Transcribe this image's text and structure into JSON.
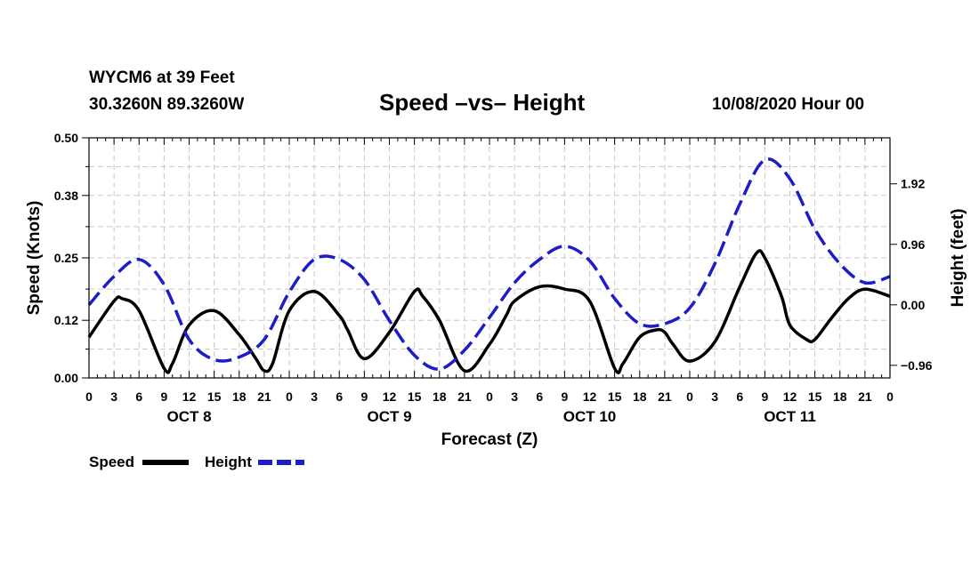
{
  "header": {
    "station": "WYCM6 at 39 Feet",
    "coords": "30.3260N 89.3260W",
    "title": "Speed –vs– Height",
    "issued": "10/08/2020 Hour 00"
  },
  "chart_data": {
    "type": "line",
    "title": "Speed –vs– Height",
    "xlabel": "Forecast (Z)",
    "ylabel_left": "Speed (Knots)",
    "ylabel_right": "Height (feet)",
    "x_range_hours": [
      0,
      96
    ],
    "x_tick_labels": [
      "0",
      "3",
      "6",
      "9",
      "12",
      "15",
      "18",
      "21",
      "0",
      "3",
      "6",
      "9",
      "12",
      "15",
      "18",
      "21",
      "0",
      "3",
      "6",
      "9",
      "12",
      "15",
      "18",
      "21",
      "0",
      "3",
      "6",
      "9",
      "12",
      "15",
      "18",
      "21",
      "0"
    ],
    "day_labels": [
      "OCT 8",
      "OCT 9",
      "OCT 10",
      "OCT 11"
    ],
    "ylim_left": [
      0,
      0.5
    ],
    "y_ticks_left": [
      "0.00",
      "0.12",
      "0.25",
      "0.38",
      "0.50"
    ],
    "ylim_right": [
      -1.16,
      2.65
    ],
    "y_ticks_right": [
      "−0.96",
      "0.00",
      "0.96",
      "1.92"
    ],
    "grid": true,
    "series": [
      {
        "name": "Speed",
        "axis": "left",
        "color": "#000000",
        "style": "solid",
        "x": [
          0,
          3,
          4,
          6,
          9,
          10,
          12,
          15,
          18,
          20,
          21,
          22,
          24,
          27,
          30,
          31,
          33,
          36,
          39,
          40,
          42,
          45,
          48,
          50,
          51,
          54,
          57,
          60,
          63,
          64,
          66,
          68,
          69,
          70,
          72,
          75,
          78,
          80,
          81,
          83,
          84,
          86,
          87,
          89,
          91,
          93,
          96
        ],
        "values": [
          0.085,
          0.16,
          0.165,
          0.14,
          0.02,
          0.03,
          0.11,
          0.14,
          0.09,
          0.04,
          0.015,
          0.03,
          0.14,
          0.18,
          0.13,
          0.1,
          0.04,
          0.095,
          0.18,
          0.17,
          0.12,
          0.015,
          0.07,
          0.13,
          0.16,
          0.19,
          0.185,
          0.16,
          0.02,
          0.03,
          0.085,
          0.1,
          0.095,
          0.07,
          0.035,
          0.075,
          0.19,
          0.26,
          0.25,
          0.17,
          0.11,
          0.08,
          0.08,
          0.125,
          0.165,
          0.185,
          0.17
        ]
      },
      {
        "name": "Height",
        "axis": "right",
        "color": "#1c1cc8",
        "style": "dashed",
        "x": [
          0,
          3,
          6,
          9,
          12,
          15,
          18,
          21,
          24,
          27,
          30,
          33,
          36,
          39,
          42,
          45,
          48,
          51,
          54,
          57,
          60,
          63,
          66,
          69,
          72,
          75,
          78,
          81,
          84,
          87,
          90,
          93,
          96
        ],
        "values": [
          0.0,
          0.45,
          0.72,
          0.32,
          -0.55,
          -0.87,
          -0.83,
          -0.55,
          0.2,
          0.72,
          0.72,
          0.4,
          -0.25,
          -0.8,
          -1.02,
          -0.72,
          -0.2,
          0.35,
          0.72,
          0.93,
          0.7,
          0.1,
          -0.3,
          -0.3,
          -0.05,
          0.65,
          1.6,
          2.3,
          2.0,
          1.2,
          0.65,
          0.35,
          0.45
        ]
      }
    ],
    "legend": [
      {
        "label": "Speed",
        "color": "#000000",
        "style": "solid"
      },
      {
        "label": "Height",
        "color": "#1c1cc8",
        "style": "dashed"
      }
    ],
    "legend_position": "bottom-left"
  }
}
